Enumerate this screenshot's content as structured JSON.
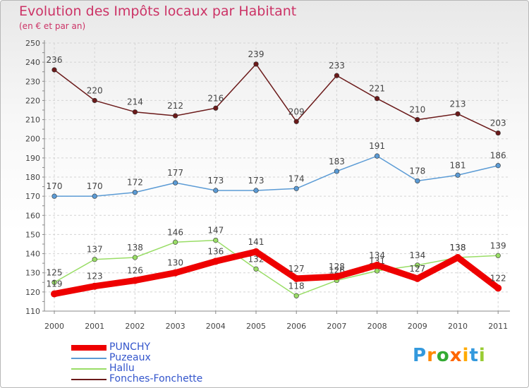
{
  "title": "Evolution des Impôts locaux par Habitant",
  "subtitle": "(en € et par an)",
  "logo": {
    "letters": [
      "P",
      "r",
      "o",
      "x",
      "i",
      "t",
      "i"
    ],
    "colors": [
      "#3399dd",
      "#ff8800",
      "#33aa33",
      "#ff6600",
      "#ffaa00",
      "#3399dd",
      "#99cc33"
    ]
  },
  "chart_data": {
    "type": "line",
    "title": "Evolution des Impôts locaux par Habitant",
    "ylabel": "(en € et par an)",
    "xlabel": "",
    "x": [
      "2000",
      "2001",
      "2002",
      "2003",
      "2004",
      "2005",
      "2006",
      "2007",
      "2008",
      "2009",
      "2010",
      "2011"
    ],
    "ylim": [
      110,
      250
    ],
    "yticks": [
      "110",
      "120",
      "130",
      "140",
      "150",
      "160",
      "170",
      "180",
      "190",
      "200",
      "210",
      "220",
      "230",
      "240",
      "250"
    ],
    "grid": true,
    "series": [
      {
        "name": "Fonches-Fonchette",
        "color": "#6b1a1a",
        "values": [
          236,
          220,
          214,
          212,
          216,
          239,
          209,
          233,
          221,
          210,
          213,
          203
        ],
        "value_labels": [
          "236",
          "220",
          "214",
          "212",
          "216",
          "239",
          "209",
          "233",
          "221",
          "210",
          "213",
          "203"
        ]
      },
      {
        "name": "Puzeaux",
        "color": "#5b9bd5",
        "values": [
          170,
          170,
          172,
          177,
          173,
          173,
          174,
          183,
          191,
          178,
          181,
          186
        ],
        "value_labels": [
          "170",
          "170",
          "172",
          "177",
          "173",
          "173",
          "174",
          "183",
          "191",
          "178",
          "181",
          "186"
        ]
      },
      {
        "name": "Hallu",
        "color": "#99dd66",
        "values": [
          125,
          137,
          138,
          146,
          147,
          132,
          118,
          126,
          131,
          134,
          138,
          139
        ],
        "value_labels": [
          "125",
          "137",
          "138",
          "146",
          "147",
          "132",
          "118",
          "126",
          "131",
          "134",
          "138",
          "139"
        ]
      },
      {
        "name": "PUNCHY",
        "color": "#ee0000",
        "values": [
          119,
          123,
          126,
          130,
          136,
          141,
          127,
          128,
          134,
          127,
          138,
          122
        ],
        "value_labels": [
          "119",
          "123",
          "126",
          "130",
          "136",
          "141",
          "127",
          "128",
          "134",
          "127",
          "138",
          "122"
        ]
      }
    ],
    "legend": [
      "PUNCHY",
      "Puzeaux",
      "Hallu",
      "Fonches-Fonchette"
    ]
  }
}
